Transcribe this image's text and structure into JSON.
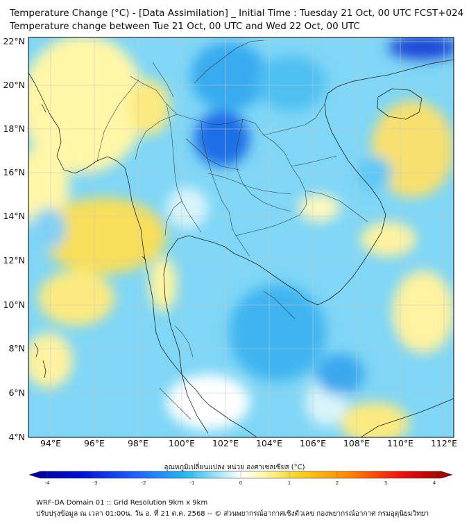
{
  "header": {
    "title_line1": "Temperature Change (°C) - [Data Assimilation] _ Initial Time : Tuesday 21 Oct, 00 UTC FCST+024",
    "title_line2": "Temperature change between Tue 21 Oct, 00 UTC and Wed 22 Oct, 00 UTC"
  },
  "map": {
    "lat_labels": [
      "22°N",
      "20°N",
      "18°N",
      "16°N",
      "14°N",
      "12°N",
      "10°N",
      "8°N",
      "6°N",
      "4°N"
    ],
    "lon_labels": [
      "94°E",
      "96°E",
      "98°E",
      "100°E",
      "102°E",
      "104°E",
      "106°E",
      "108°E",
      "110°E",
      "112°E"
    ],
    "field": "Temperature change (°C), 24h",
    "extent": {
      "lon_min": 93,
      "lon_max": 112.5,
      "lat_min": 4,
      "lat_max": 22.3
    }
  },
  "colorbar": {
    "label": "อุณหภูมิเปลี่ยนแปลง หน่วย องศาเซลเซียส (°C)",
    "ticks": [
      "-4",
      "-3",
      "-2",
      "-1",
      "0",
      "1",
      "2",
      "3",
      "4"
    ],
    "colors": {
      "neg_max": "#00008b",
      "neg": "#2040ff",
      "neg_mid": "#28b8f0",
      "neg_low": "#b8ecfa",
      "zero": "#ffffff",
      "pos_low": "#fff8b0",
      "pos_mid": "#f4d020",
      "pos": "#ff6a00",
      "pos_max": "#8b0000"
    }
  },
  "footer": {
    "line1": "WRF-DA Domain 01 :: Grid Resolution 9km x 9km",
    "line2": "ปรับปรุงข้อมูล ณ เวลา 01:00น. วัน อ. ที่ 21 ต.ค. 2568 -- © ส่วนพยากรณ์อากาศเชิงตัวเลข กองพยากรณ์อากาศ กรมอุตุนิยมวิทยา"
  }
}
